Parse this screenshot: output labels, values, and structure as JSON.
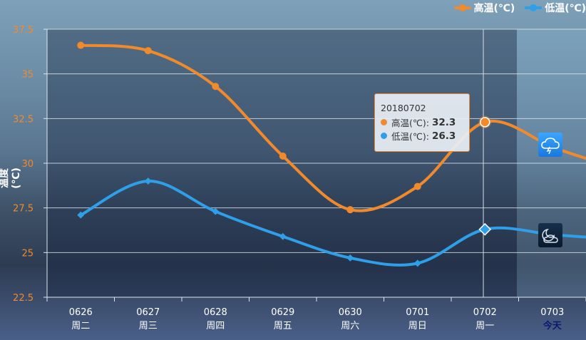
{
  "chart_data": {
    "type": "line",
    "categories": [
      "0626",
      "0627",
      "0628",
      "0629",
      "0630",
      "0701",
      "0702",
      "0703"
    ],
    "weekdays": [
      "周二",
      "周三",
      "周四",
      "周五",
      "周六",
      "周日",
      "周一",
      "今天"
    ],
    "ylabel": "温度(℃)",
    "ylim": [
      22.5,
      37.5
    ],
    "yticks": [
      "22.5",
      "25",
      "27.5",
      "30",
      "32.5",
      "35",
      "37.5"
    ],
    "series": [
      {
        "name": "高温(℃)",
        "color": "#f08a2c",
        "values": [
          36.6,
          36.3,
          34.3,
          30.4,
          27.4,
          28.7,
          32.3,
          30.9
        ]
      },
      {
        "name": "低温(℃)",
        "color": "#2e9fe8",
        "values": [
          27.1,
          29.0,
          27.3,
          25.9,
          24.7,
          24.4,
          26.3,
          26.0
        ]
      }
    ],
    "tooltip": {
      "title": "20180702",
      "high_label": "高温(℃):",
      "high_value": "32.3",
      "low_label": "低温(℃):",
      "low_value": "26.3"
    },
    "icons": [
      {
        "name": "thunderstorm-cloud-icon",
        "color": "#2a8ff0"
      },
      {
        "name": "partly-cloudy-night-icon",
        "color": "#0d2035"
      }
    ]
  }
}
